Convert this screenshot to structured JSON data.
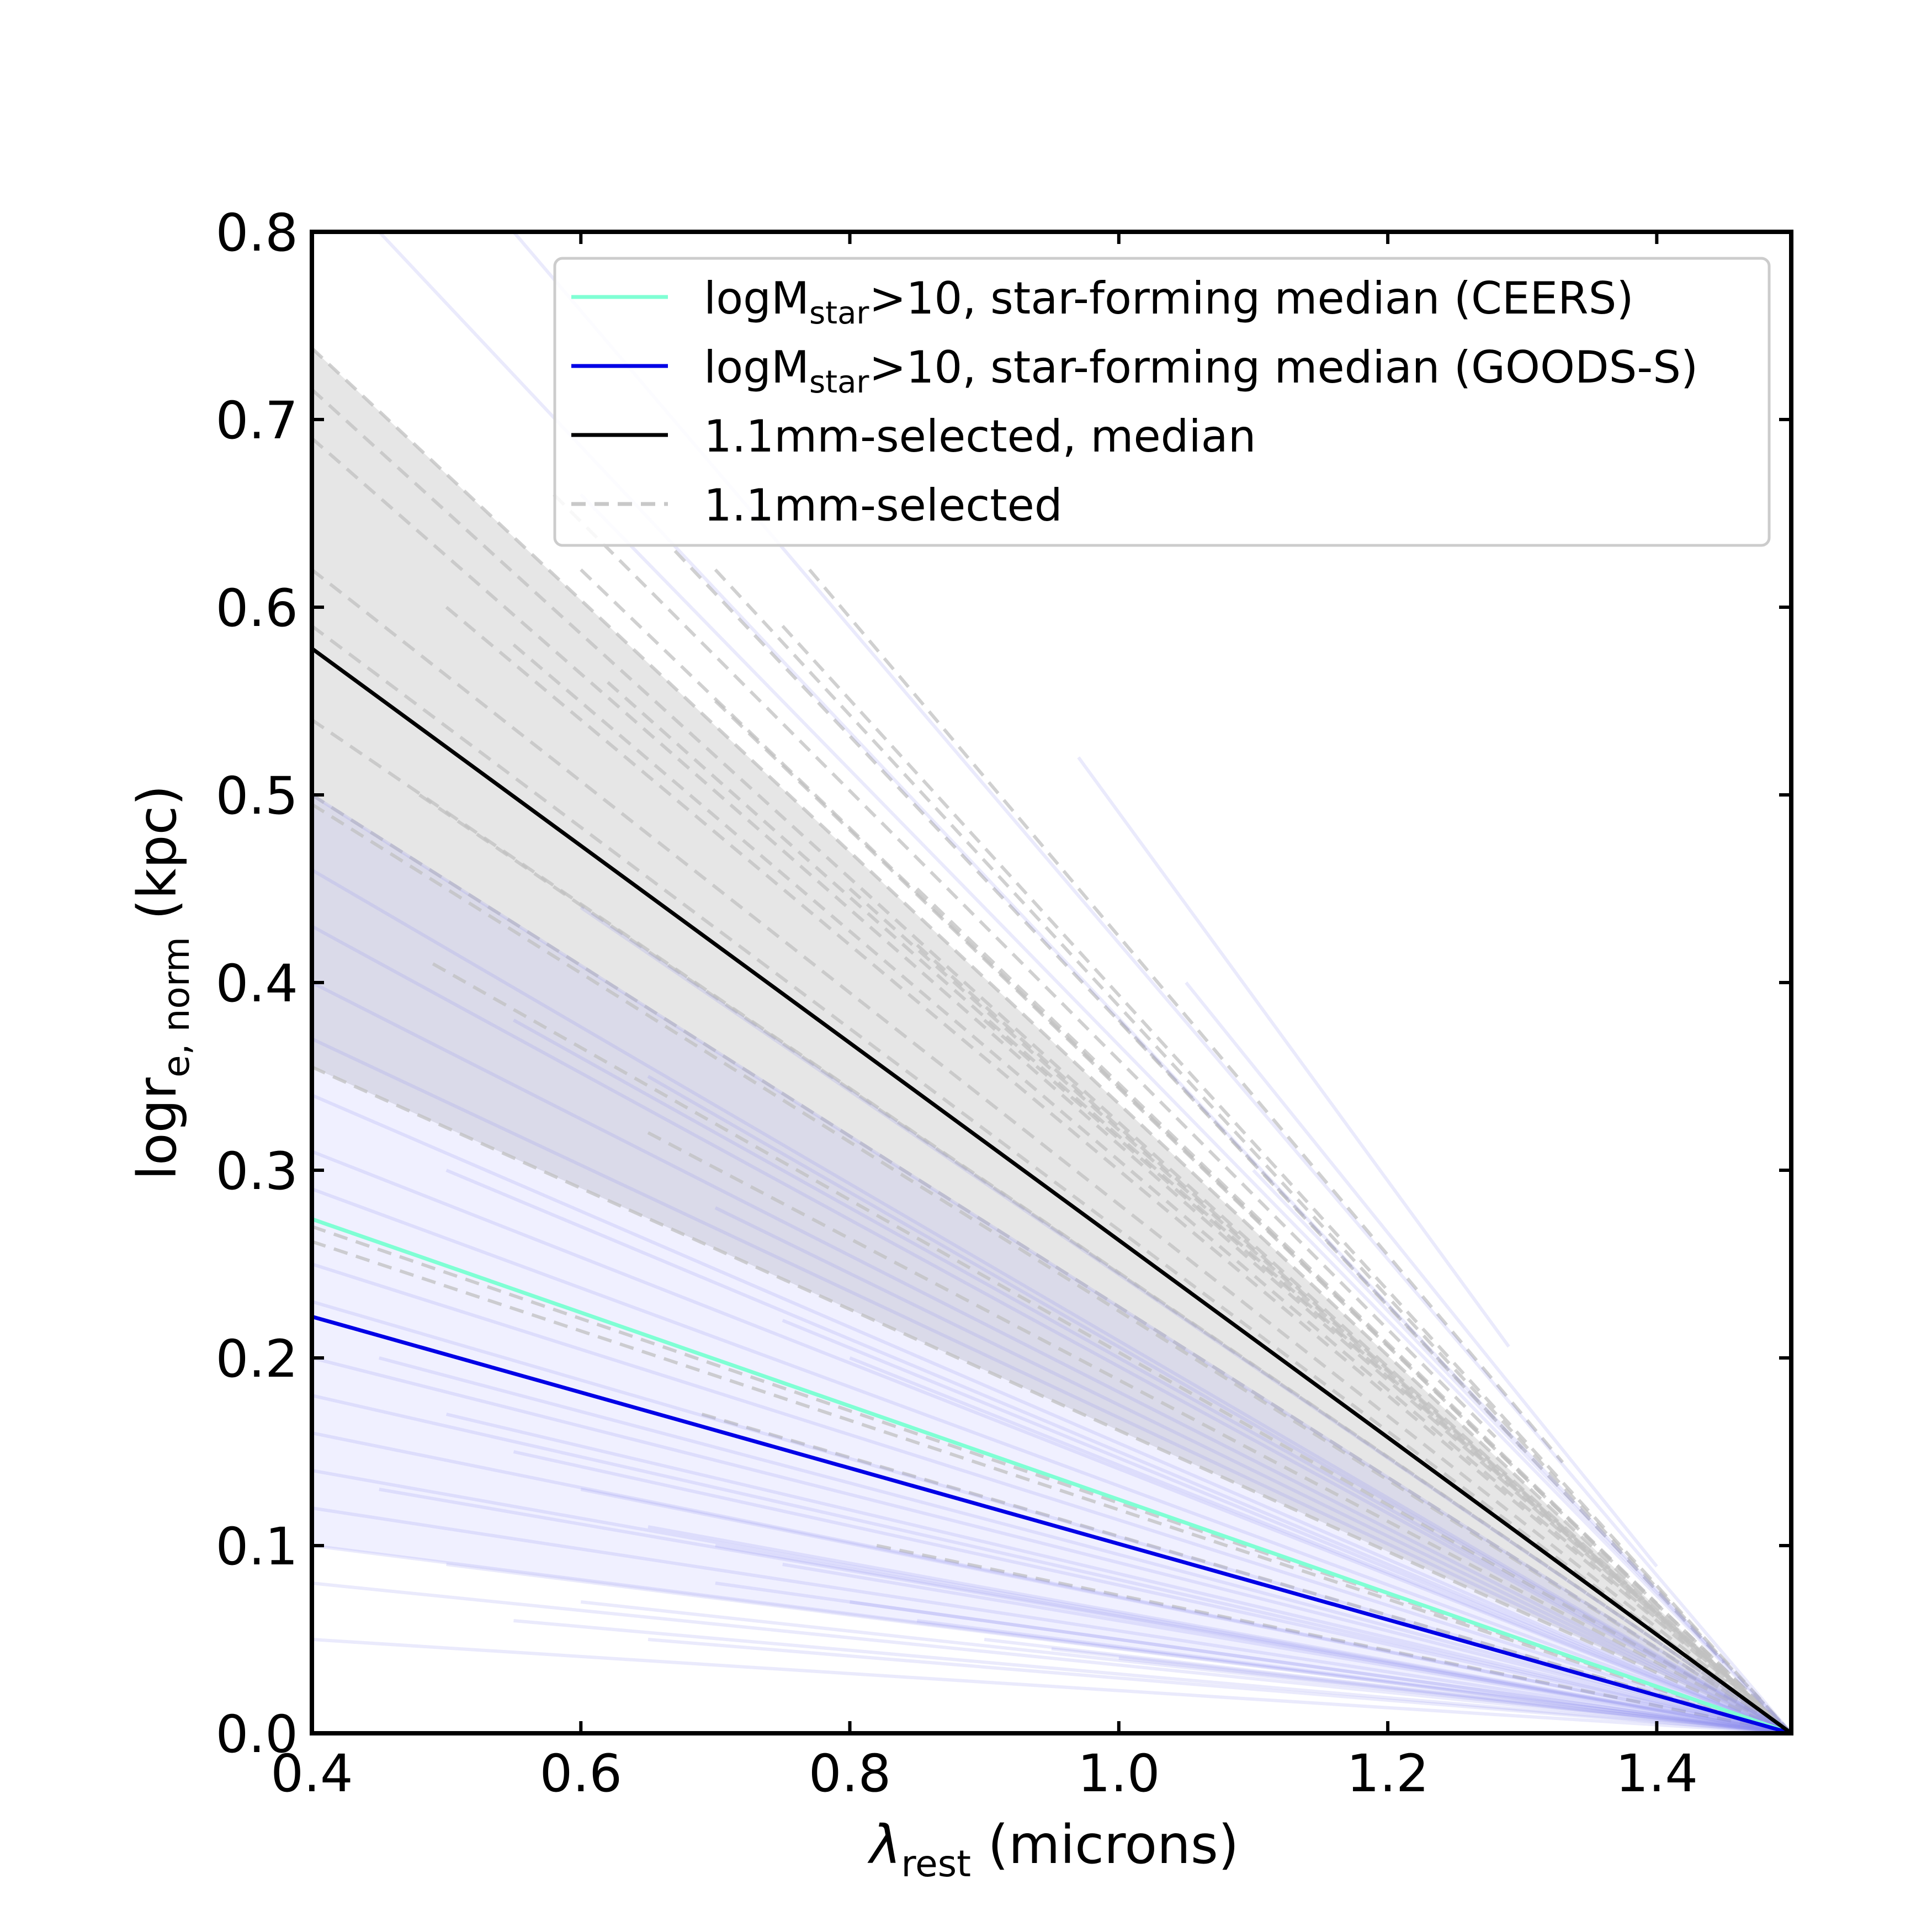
{
  "chart_data": {
    "type": "line",
    "xlabel": {
      "main": "λ",
      "sub": "rest",
      "rest": " (microns)"
    },
    "ylabel": {
      "main": "logr",
      "sub": "e, norm",
      "rest": " (kpc)"
    },
    "xlim": [
      0.4,
      1.5
    ],
    "ylim": [
      0.0,
      0.8
    ],
    "xticks": [
      0.4,
      0.6,
      0.8,
      1.0,
      1.2,
      1.4
    ],
    "xtick_labels": [
      "0.4",
      "0.6",
      "0.8",
      "1.0",
      "1.2",
      "1.4"
    ],
    "yticks": [
      0.0,
      0.1,
      0.2,
      0.3,
      0.4,
      0.5,
      0.6,
      0.7,
      0.8
    ],
    "ytick_labels": [
      "0.0",
      "0.1",
      "0.2",
      "0.3",
      "0.4",
      "0.5",
      "0.6",
      "0.7",
      "0.8"
    ],
    "legend": {
      "position": "top-right",
      "entries": [
        {
          "main": "logM",
          "sub": "star",
          "rest": ">10, star-forming median (CEERS)",
          "color": "#7fffd4",
          "style": "solid"
        },
        {
          "main": "logM",
          "sub": "star",
          "rest": ">10, star-forming median (GOODS-S)",
          "color": "#0000e6",
          "style": "solid"
        },
        {
          "main": "1.1mm-selected, median",
          "sub": "",
          "rest": "",
          "color": "#000000",
          "style": "solid"
        },
        {
          "main": "1.1mm-selected",
          "sub": "",
          "rest": "",
          "color": "#c8c8c8",
          "style": "dashed"
        }
      ]
    },
    "bands": [
      {
        "name": "1.1mm-selected range",
        "color": "#9a9a9a",
        "opacity": 0.25,
        "x": [
          0.4,
          1.5
        ],
        "lower": [
          0.355,
          0.0
        ],
        "upper": [
          0.738,
          0.0
        ]
      },
      {
        "name": "star-forming range",
        "color": "#8c8cff",
        "opacity": 0.13,
        "x": [
          0.4,
          1.5
        ],
        "lower": [
          0.1,
          0.0
        ],
        "upper": [
          0.5,
          0.0
        ]
      }
    ],
    "series": [
      {
        "name": "logMstar>10, star-forming median (CEERS)",
        "color": "#7fffd4",
        "x": [
          0.4,
          1.5
        ],
        "y": [
          0.274,
          0.0
        ]
      },
      {
        "name": "logMstar>10, star-forming median (GOODS-S)",
        "color": "#0000e6",
        "x": [
          0.4,
          1.5
        ],
        "y": [
          0.222,
          0.0
        ]
      },
      {
        "name": "1.1mm-selected, median",
        "color": "#000000",
        "x": [
          0.4,
          1.5
        ],
        "y": [
          0.578,
          0.0
        ]
      }
    ],
    "individual_mm": {
      "color": "#c0c0c0",
      "style": "dashed",
      "lines": [
        [
          0.4,
          0.738,
          1.5
        ],
        [
          0.4,
          0.716,
          1.5
        ],
        [
          0.4,
          0.69,
          1.5
        ],
        [
          0.4,
          0.62,
          1.5
        ],
        [
          0.4,
          0.59,
          1.5
        ],
        [
          0.4,
          0.54,
          1.5
        ],
        [
          0.4,
          0.5,
          1.5
        ],
        [
          0.4,
          0.495,
          1.5
        ],
        [
          0.4,
          0.355,
          1.5
        ],
        [
          0.4,
          0.27,
          1.5
        ],
        [
          0.4,
          0.262,
          1.5
        ],
        [
          0.48,
          0.5,
          1.5
        ],
        [
          0.49,
          0.41,
          1.5
        ],
        [
          0.5,
          0.6,
          1.5
        ],
        [
          0.55,
          0.58,
          1.5
        ],
        [
          0.6,
          0.62,
          1.5
        ],
        [
          0.62,
          0.56,
          1.5
        ],
        [
          0.7,
          0.55,
          1.5
        ],
        [
          0.7,
          0.62,
          1.5
        ],
        [
          0.75,
          0.59,
          1.5
        ],
        [
          0.8,
          0.45,
          1.5
        ],
        [
          0.85,
          0.42,
          1.5
        ],
        [
          0.9,
          0.38,
          1.5
        ],
        [
          0.69,
          0.17,
          1.5
        ],
        [
          0.82,
          0.1,
          1.5
        ],
        [
          0.65,
          0.32,
          1.5
        ],
        [
          0.58,
          0.66,
          1.28
        ],
        [
          0.67,
          0.63,
          1.3
        ],
        [
          0.77,
          0.62,
          1.33
        ],
        [
          0.85,
          0.45,
          1.4
        ],
        [
          1.0,
          0.38,
          1.45
        ]
      ]
    },
    "individual_sf": {
      "color": "#8888ee",
      "style": "solid",
      "lines": [
        [
          0.4,
          0.5,
          1.5
        ],
        [
          0.4,
          0.46,
          1.5
        ],
        [
          0.4,
          0.43,
          1.5
        ],
        [
          0.4,
          0.4,
          1.5
        ],
        [
          0.4,
          0.37,
          1.5
        ],
        [
          0.4,
          0.34,
          1.5
        ],
        [
          0.4,
          0.31,
          1.5
        ],
        [
          0.4,
          0.29,
          1.5
        ],
        [
          0.4,
          0.25,
          1.5
        ],
        [
          0.4,
          0.23,
          1.5
        ],
        [
          0.4,
          0.2,
          1.5
        ],
        [
          0.4,
          0.18,
          1.5
        ],
        [
          0.4,
          0.16,
          1.5
        ],
        [
          0.4,
          0.14,
          1.5
        ],
        [
          0.4,
          0.12,
          1.5
        ],
        [
          0.4,
          0.1,
          1.5
        ],
        [
          0.4,
          0.08,
          1.5
        ],
        [
          0.4,
          0.05,
          1.5
        ],
        [
          0.45,
          0.2,
          1.5
        ],
        [
          0.45,
          0.13,
          1.5
        ],
        [
          0.5,
          0.17,
          1.5
        ],
        [
          0.5,
          0.09,
          1.5
        ],
        [
          0.55,
          0.15,
          1.5
        ],
        [
          0.55,
          0.06,
          1.5
        ],
        [
          0.6,
          0.13,
          1.5
        ],
        [
          0.6,
          0.07,
          1.5
        ],
        [
          0.65,
          0.11,
          1.5
        ],
        [
          0.65,
          0.05,
          1.5
        ],
        [
          0.7,
          0.1,
          1.5
        ],
        [
          0.7,
          0.08,
          1.5
        ],
        [
          0.75,
          0.09,
          1.5
        ],
        [
          0.8,
          0.07,
          1.5
        ],
        [
          0.85,
          0.06,
          1.5
        ],
        [
          0.9,
          0.05,
          1.5
        ],
        [
          0.95,
          0.045,
          1.5
        ],
        [
          1.0,
          0.04,
          1.5
        ],
        [
          0.5,
          0.3,
          1.5
        ],
        [
          0.55,
          0.38,
          1.5
        ],
        [
          0.6,
          0.44,
          1.5
        ],
        [
          0.65,
          0.35,
          1.5
        ],
        [
          0.7,
          0.28,
          1.5
        ],
        [
          0.75,
          0.22,
          1.5
        ],
        [
          0.8,
          0.2,
          1.5
        ],
        [
          0.45,
          0.8,
          1.5
        ],
        [
          0.55,
          0.8,
          1.5
        ],
        [
          0.6,
          0.66,
          1.5
        ],
        [
          0.97,
          0.52,
          1.29
        ],
        [
          1.05,
          0.4,
          1.4
        ],
        [
          1.1,
          0.3,
          1.45
        ]
      ]
    }
  }
}
